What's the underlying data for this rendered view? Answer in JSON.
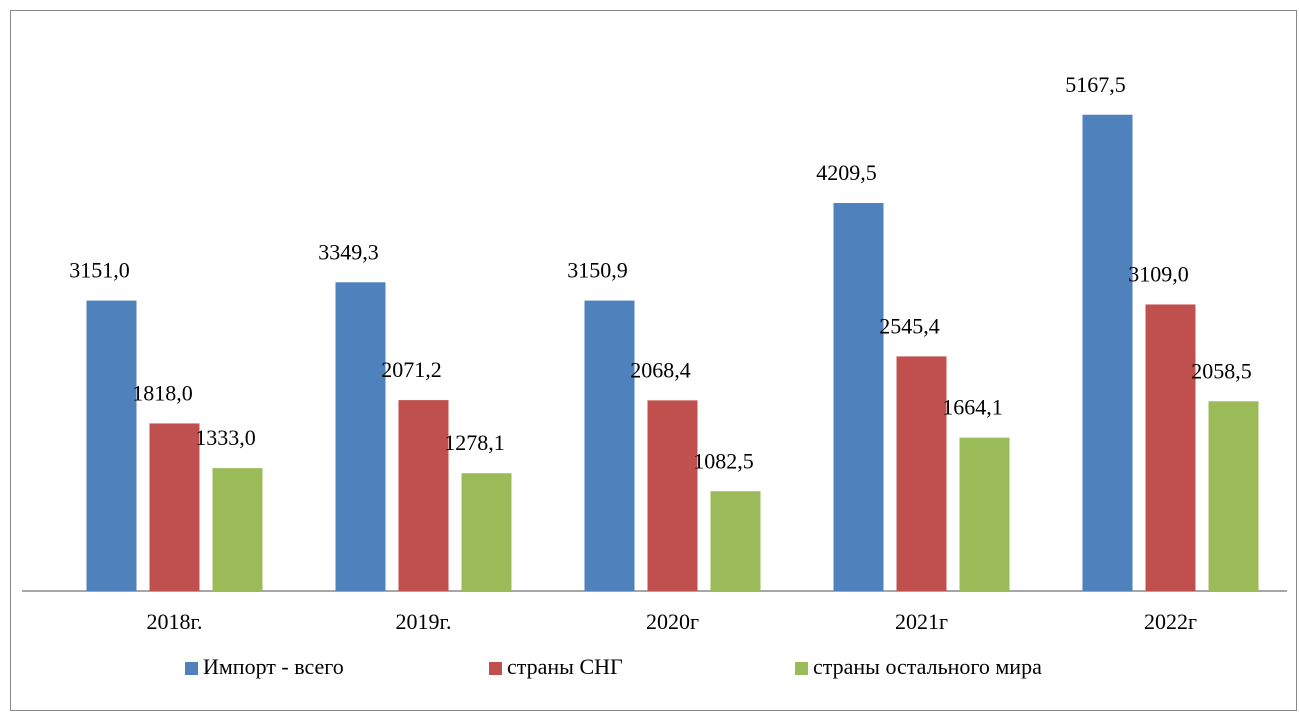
{
  "chart_data": {
    "type": "bar",
    "categories": [
      "2018г.",
      "2019г.",
      "2020г",
      "2021г",
      "2022г"
    ],
    "series": [
      {
        "name": "Импорт - всего",
        "color": "#4f81bd",
        "values": [
          3151.0,
          3349.3,
          3150.9,
          4209.5,
          5167.5
        ],
        "value_labels": [
          "3151,0",
          "3349,3",
          "3150,9",
          "4209,5",
          "5167,5"
        ]
      },
      {
        "name": "страны СНГ",
        "color": "#c0504d",
        "values": [
          1818.0,
          2071.2,
          2068.4,
          2545.4,
          3109.0
        ],
        "value_labels": [
          "1818,0",
          "2071,2",
          "2068,4",
          "2545,4",
          "3109,0"
        ]
      },
      {
        "name": "страны остального мира",
        "color": "#9bbb59",
        "values": [
          1333.0,
          1278.1,
          1082.5,
          1664.1,
          2058.5
        ],
        "value_labels": [
          "1333,0",
          "1278,1",
          "1082,5",
          "1664,1",
          "2058,5"
        ]
      }
    ],
    "ylim": [
      0,
      6000
    ],
    "legend": "bottom"
  }
}
